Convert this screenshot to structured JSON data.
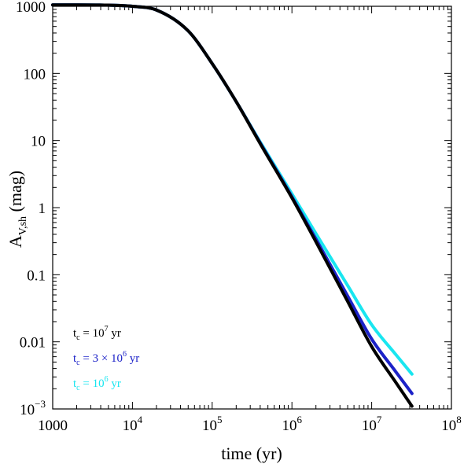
{
  "chart_data": {
    "type": "line",
    "xlabel": "time (yr)",
    "ylabel_main": "A",
    "ylabel_sub": "V,sh",
    "ylabel_unit": " (mag)",
    "x_scale": "log",
    "y_scale": "log",
    "xlim": [
      1000,
      100000000
    ],
    "ylim": [
      0.001,
      1000
    ],
    "grid": false,
    "legend_position": "bottom-left",
    "x_ticks": [
      {
        "value": 1000,
        "base": "1000",
        "exp": ""
      },
      {
        "value": 10000,
        "base": "10",
        "exp": "4"
      },
      {
        "value": 100000,
        "base": "10",
        "exp": "5"
      },
      {
        "value": 1000000,
        "base": "10",
        "exp": "6"
      },
      {
        "value": 10000000,
        "base": "10",
        "exp": "7"
      },
      {
        "value": 100000000,
        "base": "10",
        "exp": "8"
      }
    ],
    "y_ticks": [
      {
        "value": 1000,
        "base": "1000",
        "exp": ""
      },
      {
        "value": 100,
        "base": "100",
        "exp": ""
      },
      {
        "value": 10,
        "base": "10",
        "exp": ""
      },
      {
        "value": 1,
        "base": "1",
        "exp": ""
      },
      {
        "value": 0.1,
        "base": "0.1",
        "exp": ""
      },
      {
        "value": 0.01,
        "base": "0.01",
        "exp": ""
      },
      {
        "value": 0.001,
        "base": "10",
        "exp": "−3"
      }
    ],
    "series": [
      {
        "label_prefix": "t",
        "label_sub": "c",
        "label_mid": " = 10",
        "label_exp": "6",
        "label_suffix": " yr",
        "color": "#19e6f0",
        "x": [
          1000,
          5000,
          10000,
          20000,
          50000,
          100000,
          200000,
          400000,
          1000000,
          2000000,
          5000000,
          10000000,
          20000000,
          32000000
        ],
        "y": [
          1050,
          1040,
          1000,
          880,
          430,
          140,
          38,
          9.5,
          1.6,
          0.41,
          0.069,
          0.018,
          0.0065,
          0.0033
        ]
      },
      {
        "label_prefix": "t",
        "label_sub": "c",
        "label_mid": " = 3 × 10",
        "label_exp": "6",
        "label_suffix": " yr",
        "color": "#1c22c8",
        "x": [
          1000,
          5000,
          10000,
          20000,
          50000,
          100000,
          200000,
          400000,
          1000000,
          2000000,
          5000000,
          10000000,
          20000000,
          32000000
        ],
        "y": [
          1050,
          1040,
          1000,
          880,
          430,
          140,
          38,
          9.2,
          1.45,
          0.34,
          0.048,
          0.011,
          0.0036,
          0.0017
        ]
      },
      {
        "label_prefix": "t",
        "label_sub": "c",
        "label_mid": " = 10",
        "label_exp": "7",
        "label_suffix": " yr",
        "color": "#000000",
        "x": [
          1000,
          5000,
          10000,
          20000,
          50000,
          100000,
          200000,
          400000,
          1000000,
          2000000,
          5000000,
          10000000,
          20000000,
          32000000
        ],
        "y": [
          1050,
          1040,
          1000,
          880,
          430,
          140,
          38,
          9.0,
          1.4,
          0.31,
          0.04,
          0.0085,
          0.0025,
          0.0011
        ]
      }
    ],
    "legend_order": [
      2,
      1,
      0
    ]
  }
}
